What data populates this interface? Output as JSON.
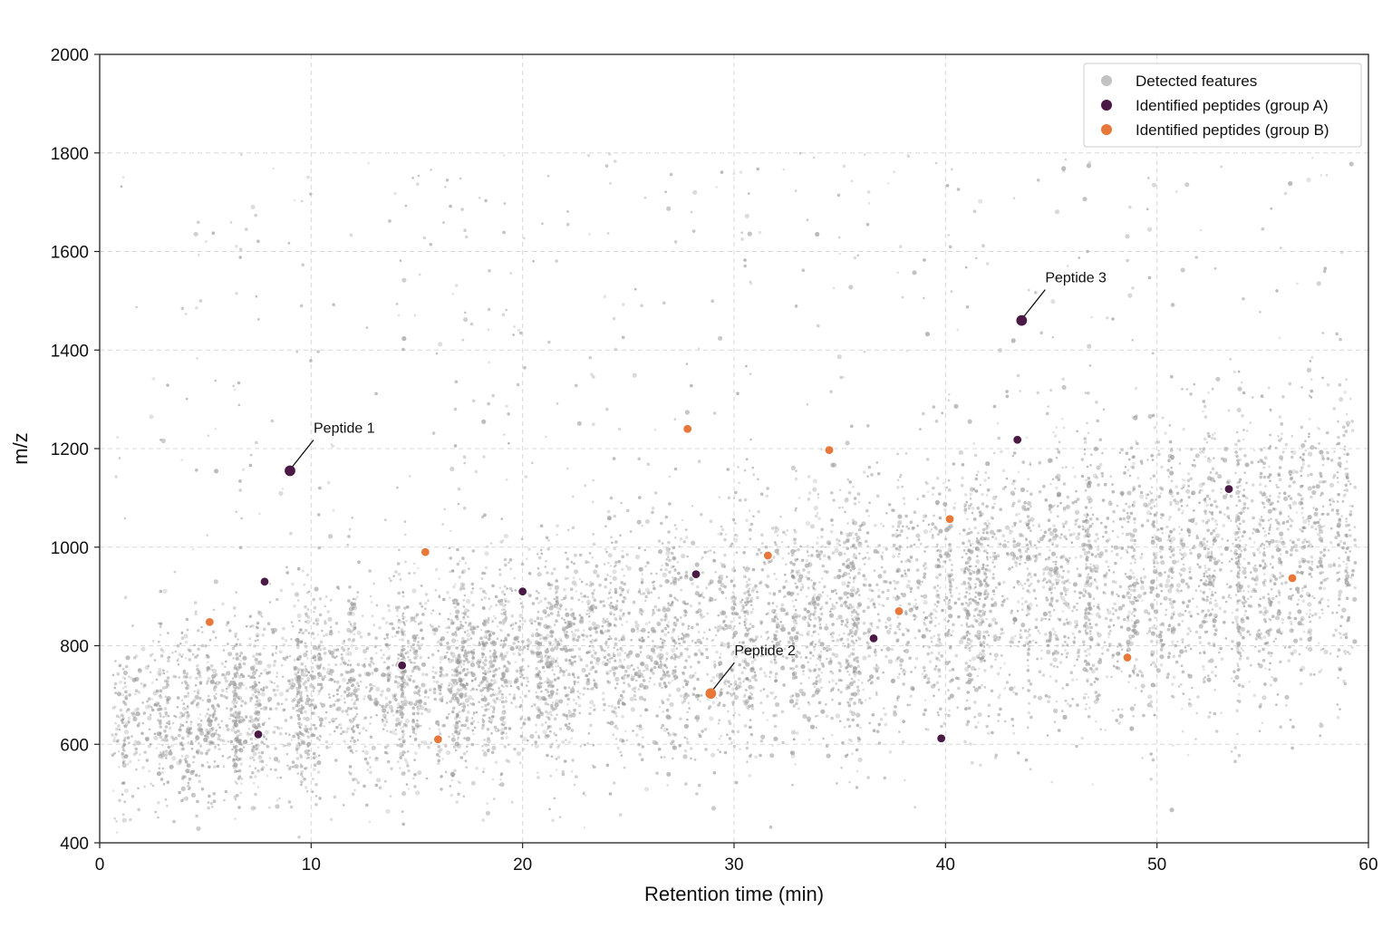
{
  "chart_data": {
    "type": "scatter",
    "title": "",
    "xlabel": "Retention time (min)",
    "ylabel": "m/z",
    "xlim": [
      0,
      60
    ],
    "ylim": [
      400,
      2000
    ],
    "xticks": [
      "0",
      "10",
      "20",
      "30",
      "40",
      "50",
      "60"
    ],
    "yticks": [
      "400",
      "600",
      "800",
      "1000",
      "1200",
      "1400",
      "1600",
      "1800",
      "2000"
    ],
    "grid": true,
    "legend_position": "top-right",
    "colors": {
      "detected": "#9a9a9a",
      "group_a": "#4a1a45",
      "group_b": "#e8773a"
    },
    "background_series": {
      "name": "Detected features",
      "approx_count": 9000,
      "distribution": "dense cloud; rt 0.5-59.5 min, m/z mostly 500-1300, sparse to ~1900"
    },
    "series": [
      {
        "name": "Identified peptides (group A)",
        "points": [
          {
            "x": 7.8,
            "y": 930
          },
          {
            "x": 7.5,
            "y": 620
          },
          {
            "x": 9.0,
            "y": 1155
          },
          {
            "x": 14.3,
            "y": 760
          },
          {
            "x": 20.0,
            "y": 910
          },
          {
            "x": 28.2,
            "y": 945
          },
          {
            "x": 36.6,
            "y": 815
          },
          {
            "x": 39.8,
            "y": 612
          },
          {
            "x": 43.4,
            "y": 1218
          },
          {
            "x": 43.6,
            "y": 1460
          },
          {
            "x": 53.4,
            "y": 1118
          }
        ]
      },
      {
        "name": "Identified peptides (group B)",
        "points": [
          {
            "x": 5.2,
            "y": 848
          },
          {
            "x": 15.4,
            "y": 990
          },
          {
            "x": 16.0,
            "y": 610
          },
          {
            "x": 27.8,
            "y": 1240
          },
          {
            "x": 28.9,
            "y": 703
          },
          {
            "x": 31.6,
            "y": 983
          },
          {
            "x": 34.5,
            "y": 1197
          },
          {
            "x": 37.8,
            "y": 870
          },
          {
            "x": 40.2,
            "y": 1057
          },
          {
            "x": 48.6,
            "y": 776
          },
          {
            "x": 56.4,
            "y": 937
          }
        ]
      }
    ],
    "annotations": [
      {
        "text": "Peptide 1",
        "x": 9.0,
        "y": 1155
      },
      {
        "text": "Peptide 2",
        "x": 28.9,
        "y": 703
      },
      {
        "text": "Peptide 3",
        "x": 43.6,
        "y": 1460
      }
    ]
  }
}
